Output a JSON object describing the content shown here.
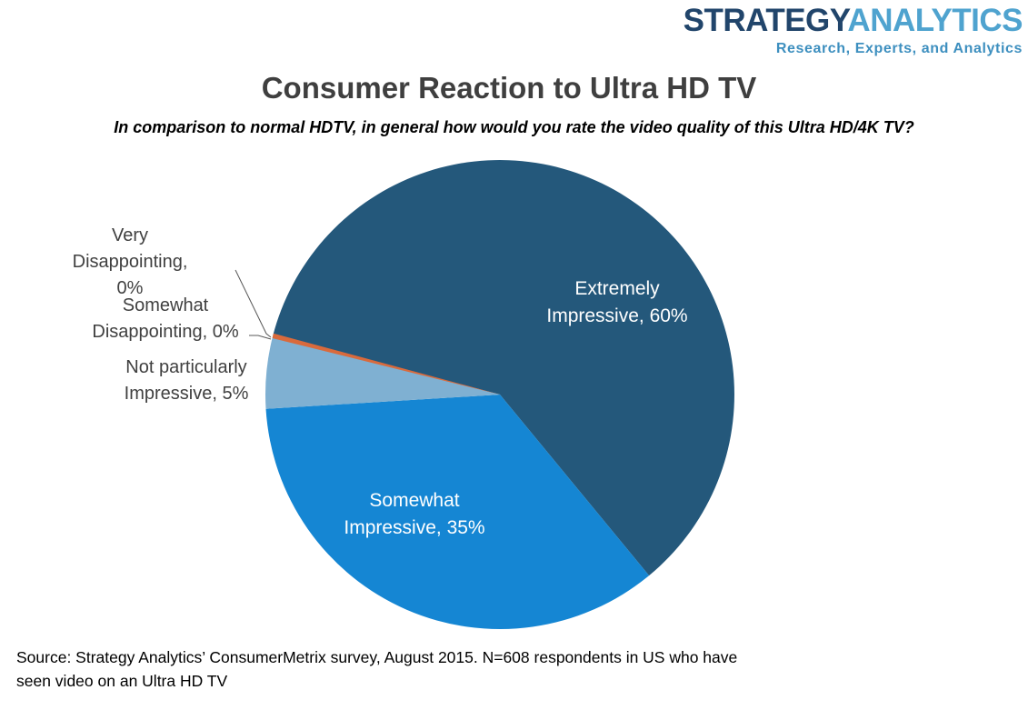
{
  "logo": {
    "part1": "STRATEGY",
    "part2": "ANALYTICS",
    "tagline": "Research, Experts, and Analytics",
    "part1_color": "#21456B",
    "part2_color": "#4FA3CF",
    "tagline_color": "#3D8FBF"
  },
  "chart_data": {
    "type": "pie",
    "title": "Consumer Reaction to Ultra HD TV",
    "subtitle": "In comparison to normal HDTV, in general how would you rate the video quality of this Ultra HD/4K TV?",
    "start_angle_deg_clockwise_from_top": 284.5,
    "direction": "clockwise",
    "legend": "none (labels on/beside slices)",
    "slices": [
      {
        "key": "extremely-impressive",
        "label": "Extremely Impressive",
        "value": 60,
        "color": "#24587B",
        "lines": [
          "Extremely",
          "Impressive, 60%"
        ]
      },
      {
        "key": "somewhat-impressive",
        "label": "Somewhat Impressive",
        "value": 35,
        "color": "#1586D3",
        "lines": [
          "Somewhat",
          "Impressive, 35%"
        ]
      },
      {
        "key": "not-particularly-impressive",
        "label": "Not particularly Impressive",
        "value": 5,
        "color": "#7FB0D2",
        "lines": [
          "Not particularly",
          "Impressive, 5%"
        ]
      },
      {
        "key": "somewhat-disappointing",
        "label": "Somewhat Disappointing",
        "value": 0,
        "color": "#D96A3C",
        "sliver": true,
        "lines": [
          "Somewhat",
          "Disappointing, 0%"
        ]
      },
      {
        "key": "very-disappointing",
        "label": "Very Disappointing",
        "value": 0,
        "color": null,
        "lines": [
          "Very",
          "Disappointing,",
          "0%"
        ]
      }
    ],
    "label_text_colors": {
      "inside": "#FFFFFF",
      "outside": "#404040"
    },
    "leader_line_color": "#595959"
  },
  "source": {
    "line1": "Source: Strategy Analytics’ ConsumerMetrix survey, August 2015. N=608 respondents in US who have",
    "line2": "seen video on an Ultra HD TV"
  }
}
